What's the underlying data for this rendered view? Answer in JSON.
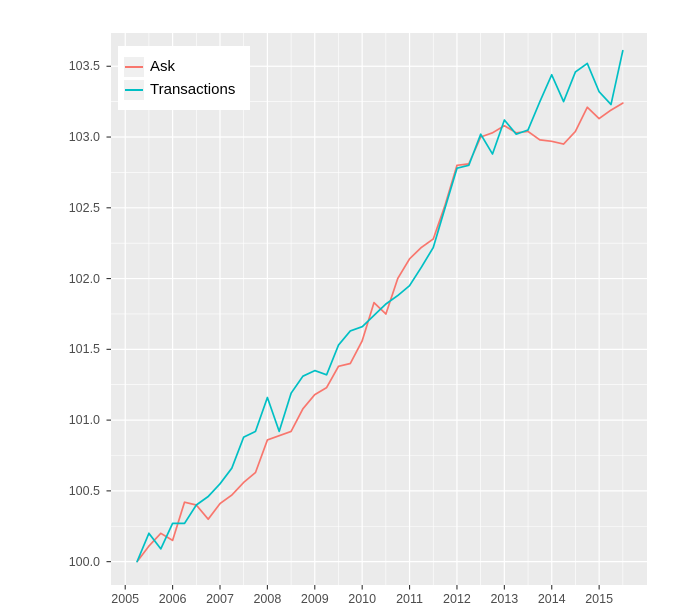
{
  "chart_data": {
    "type": "line",
    "title": "",
    "xlabel": "",
    "ylabel": "",
    "grid": "on",
    "legend_position": "top-left-inside",
    "panel_color": "#EBEBEB",
    "grid_color": "#FFFFFF",
    "tick_color": "#333333",
    "tick_label_color": "#4D4D4D",
    "xlim": [
      2004.7,
      2016.01
    ],
    "ylim": [
      99.835,
      103.735
    ],
    "x_ticks": [
      {
        "value": 2005,
        "label": "2005"
      },
      {
        "value": 2006,
        "label": "2006"
      },
      {
        "value": 2007,
        "label": "2007"
      },
      {
        "value": 2008,
        "label": "2008"
      },
      {
        "value": 2009,
        "label": "2009"
      },
      {
        "value": 2010,
        "label": "2010"
      },
      {
        "value": 2011,
        "label": "2011"
      },
      {
        "value": 2012,
        "label": "2012"
      },
      {
        "value": 2013,
        "label": "2013"
      },
      {
        "value": 2014,
        "label": "2014"
      },
      {
        "value": 2015,
        "label": "2015"
      }
    ],
    "y_ticks": [
      {
        "value": 100.0,
        "label": "100.0"
      },
      {
        "value": 100.5,
        "label": "100.5"
      },
      {
        "value": 101.0,
        "label": "101.0"
      },
      {
        "value": 101.5,
        "label": "101.5"
      },
      {
        "value": 102.0,
        "label": "102.0"
      },
      {
        "value": 102.5,
        "label": "102.5"
      },
      {
        "value": 103.0,
        "label": "103.0"
      },
      {
        "value": 103.5,
        "label": "103.5"
      }
    ],
    "x_minor_ticks": [
      2005.5,
      2006.5,
      2007.5,
      2008.5,
      2009.5,
      2010.5,
      2011.5,
      2012.5,
      2013.5,
      2014.5,
      2015.5
    ],
    "y_minor_ticks": [
      100.25,
      100.75,
      101.25,
      101.75,
      102.25,
      102.75,
      103.25
    ],
    "x": [
      2005.25,
      2005.5,
      2005.75,
      2006.0,
      2006.25,
      2006.5,
      2006.75,
      2007.0,
      2007.25,
      2007.5,
      2007.75,
      2008.0,
      2008.25,
      2008.5,
      2008.75,
      2009.0,
      2009.25,
      2009.5,
      2009.75,
      2010.0,
      2010.25,
      2010.5,
      2010.75,
      2011.0,
      2011.25,
      2011.5,
      2011.75,
      2012.0,
      2012.25,
      2012.5,
      2012.75,
      2013.0,
      2013.25,
      2013.5,
      2013.75,
      2014.0,
      2014.25,
      2014.5,
      2014.75,
      2015.0,
      2015.25,
      2015.5
    ],
    "series": [
      {
        "name": "Ask",
        "color": "#F8766D",
        "values": [
          100.0,
          100.11,
          100.2,
          100.15,
          100.42,
          100.4,
          100.3,
          100.41,
          100.47,
          100.56,
          100.63,
          100.86,
          100.89,
          100.92,
          101.08,
          101.18,
          101.23,
          101.38,
          101.4,
          101.56,
          101.83,
          101.75,
          102.0,
          102.14,
          102.22,
          102.28,
          102.52,
          102.8,
          102.81,
          103.0,
          103.03,
          103.08,
          103.03,
          103.04,
          102.98,
          102.97,
          102.95,
          103.04,
          103.21,
          103.13,
          103.19,
          103.24
        ]
      },
      {
        "name": "Transactions",
        "color": "#00BFC4",
        "values": [
          100.0,
          100.2,
          100.09,
          100.27,
          100.27,
          100.4,
          100.46,
          100.55,
          100.66,
          100.88,
          100.92,
          101.16,
          100.92,
          101.19,
          101.31,
          101.35,
          101.32,
          101.53,
          101.63,
          101.66,
          101.74,
          101.82,
          101.88,
          101.95,
          102.08,
          102.22,
          102.5,
          102.78,
          102.8,
          103.02,
          102.88,
          103.12,
          103.02,
          103.05,
          103.25,
          103.44,
          103.25,
          103.46,
          103.52,
          103.32,
          103.23,
          103.61
        ]
      }
    ]
  },
  "legend": {
    "items": [
      {
        "label": "Ask"
      },
      {
        "label": "Transactions"
      }
    ]
  }
}
